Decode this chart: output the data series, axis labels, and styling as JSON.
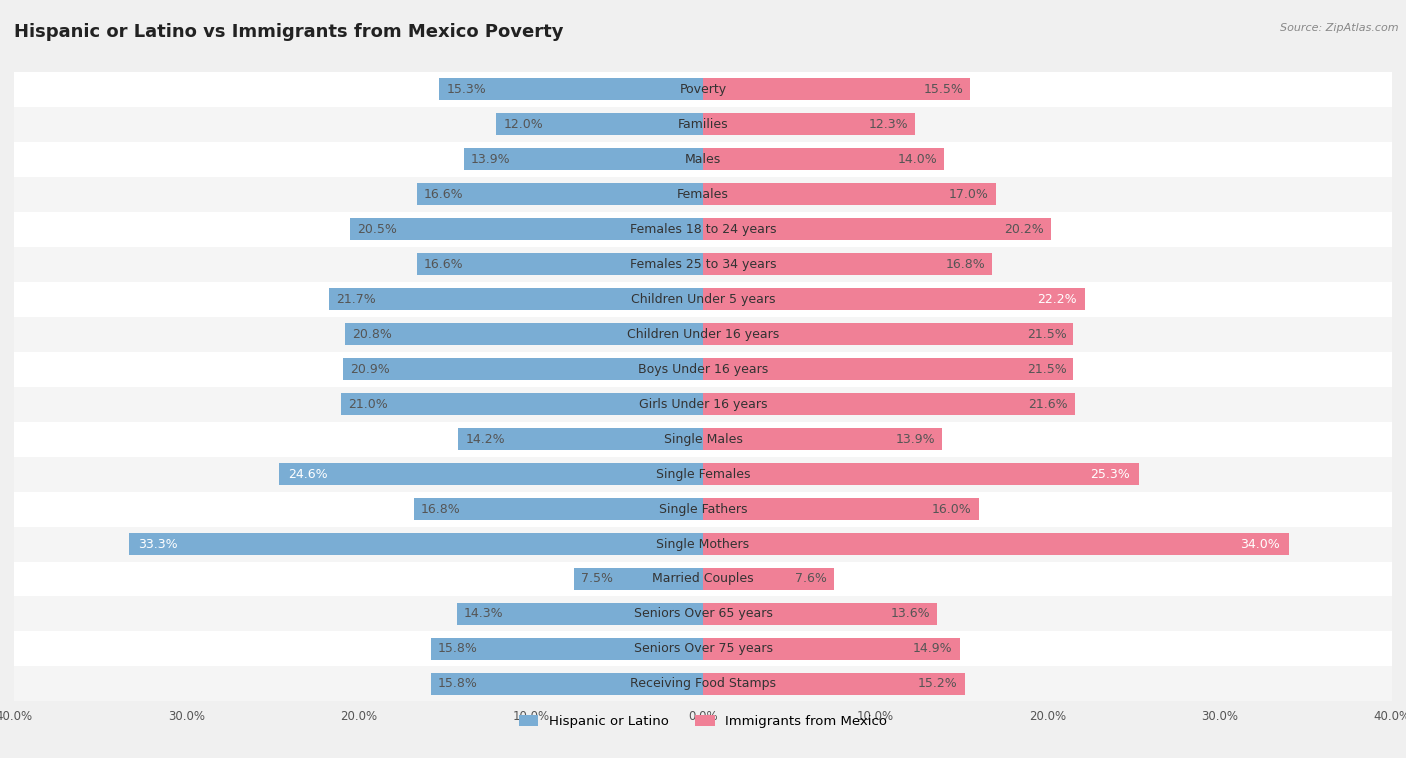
{
  "title": "Hispanic or Latino vs Immigrants from Mexico Poverty",
  "source": "Source: ZipAtlas.com",
  "categories": [
    "Poverty",
    "Families",
    "Males",
    "Females",
    "Females 18 to 24 years",
    "Females 25 to 34 years",
    "Children Under 5 years",
    "Children Under 16 years",
    "Boys Under 16 years",
    "Girls Under 16 years",
    "Single Males",
    "Single Females",
    "Single Fathers",
    "Single Mothers",
    "Married Couples",
    "Seniors Over 65 years",
    "Seniors Over 75 years",
    "Receiving Food Stamps"
  ],
  "left_values": [
    15.3,
    12.0,
    13.9,
    16.6,
    20.5,
    16.6,
    21.7,
    20.8,
    20.9,
    21.0,
    14.2,
    24.6,
    16.8,
    33.3,
    7.5,
    14.3,
    15.8,
    15.8
  ],
  "right_values": [
    15.5,
    12.3,
    14.0,
    17.0,
    20.2,
    16.8,
    22.2,
    21.5,
    21.5,
    21.6,
    13.9,
    25.3,
    16.0,
    34.0,
    7.6,
    13.6,
    14.9,
    15.2
  ],
  "left_color": "#7aadd4",
  "right_color": "#f08096",
  "left_label": "Hispanic or Latino",
  "right_label": "Immigrants from Mexico",
  "axis_max": 40.0,
  "row_bg_light": "#f5f5f5",
  "row_bg_white": "#ffffff",
  "overall_bg": "#f0f0f0",
  "title_fontsize": 13,
  "value_fontsize": 9,
  "category_fontsize": 9,
  "white_label_threshold": 22.0
}
